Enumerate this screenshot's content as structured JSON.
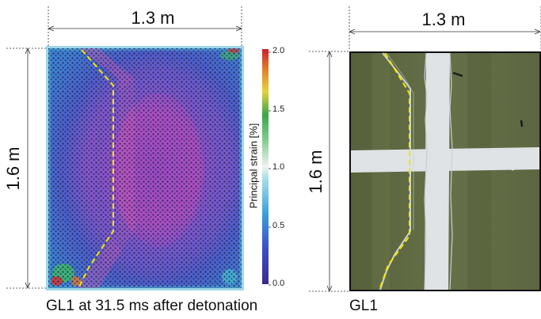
{
  "left_panel": {
    "width_label": "1.3 m",
    "height_label": "1.6 m",
    "caption": "GL1 at 31.5 ms after detonation",
    "colorbar": {
      "title": "Principal strain [%]",
      "ticks": [
        "2.0",
        "1.5",
        "1.0",
        "0.5",
        "0.0"
      ]
    }
  },
  "right_panel": {
    "width_label": "1.3 m",
    "height_label": "1.6 m",
    "caption": "GL1"
  },
  "colors": {
    "crack_marker": "#f2e600",
    "strain_base": "#8a4fbf",
    "glass_base": "#5f6a3e",
    "tape": "#dfe3e6"
  }
}
